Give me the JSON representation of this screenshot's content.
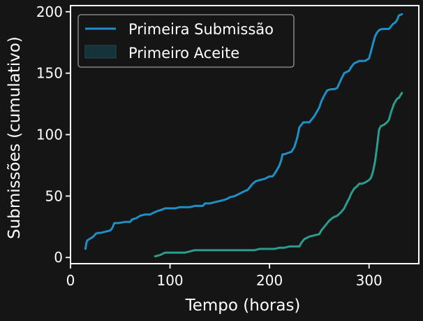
{
  "chart_data": {
    "type": "line",
    "title": "",
    "xlabel": "Tempo (horas)",
    "ylabel": "Submissões (cumulativo)",
    "xlim": [
      0,
      350
    ],
    "ylim": [
      -5,
      205
    ],
    "xticks": [
      0,
      100,
      200,
      300
    ],
    "yticks": [
      0,
      50,
      100,
      150,
      200
    ],
    "grid": false,
    "legend_position": "top-left",
    "background": "#151515",
    "series": [
      {
        "name": "Primeira Submissão",
        "color": "#1f8fc7",
        "x": [
          15,
          16,
          17,
          19,
          21,
          23,
          25,
          27,
          30,
          35,
          40,
          42,
          44,
          48,
          55,
          60,
          62,
          66,
          70,
          75,
          80,
          85,
          88,
          92,
          95,
          100,
          105,
          110,
          115,
          120,
          125,
          130,
          133,
          135,
          140,
          145,
          150,
          155,
          158,
          160,
          165,
          170,
          175,
          178,
          180,
          183,
          186,
          190,
          195,
          200,
          203,
          205,
          208,
          210,
          212,
          213,
          215,
          218,
          222,
          225,
          228,
          230,
          232,
          234,
          235,
          237,
          240,
          245,
          250,
          252,
          255,
          258,
          262,
          265,
          268,
          272,
          275,
          280,
          282,
          285,
          288,
          290,
          293,
          296,
          300,
          302,
          304,
          306,
          308,
          310,
          313,
          316,
          320,
          322,
          324,
          326,
          328,
          330,
          333
        ],
        "y": [
          7,
          12,
          14,
          15,
          16,
          17,
          19,
          20,
          20,
          21,
          22,
          24,
          28,
          28,
          29,
          29,
          31,
          32,
          34,
          35,
          35,
          37,
          38,
          39,
          40,
          40,
          40,
          41,
          41,
          41,
          42,
          42,
          42,
          44,
          44,
          45,
          46,
          47,
          48,
          49,
          50,
          52,
          54,
          55,
          57,
          60,
          62,
          63,
          64,
          66,
          66,
          68,
          72,
          75,
          80,
          84,
          84,
          85,
          86,
          90,
          98,
          106,
          108,
          110,
          110,
          110,
          110,
          115,
          122,
          127,
          132,
          136,
          137,
          137,
          138,
          145,
          150,
          152,
          155,
          158,
          159,
          160,
          160,
          160,
          162,
          168,
          174,
          180,
          183,
          185,
          186,
          186,
          186,
          188,
          190,
          191,
          193,
          197,
          198
        ]
      },
      {
        "name": "Primeiro Aceite",
        "color": "#2a9d8f",
        "x": [
          85,
          90,
          95,
          100,
          105,
          110,
          115,
          120,
          125,
          130,
          140,
          150,
          160,
          170,
          180,
          185,
          190,
          195,
          200,
          205,
          210,
          215,
          220,
          225,
          230,
          232,
          235,
          240,
          245,
          250,
          252,
          255,
          258,
          260,
          263,
          265,
          268,
          272,
          275,
          278,
          280,
          282,
          285,
          288,
          290,
          293,
          296,
          300,
          302,
          304,
          306,
          308,
          310,
          312,
          315,
          318,
          320,
          322,
          325,
          328,
          330,
          333
        ],
        "y": [
          1,
          2,
          4,
          4,
          4,
          4,
          4,
          5,
          6,
          6,
          6,
          6,
          6,
          6,
          6,
          6,
          7,
          7,
          7,
          7,
          8,
          8,
          9,
          9,
          9,
          12,
          15,
          17,
          18,
          19,
          22,
          25,
          28,
          30,
          32,
          33,
          34,
          37,
          40,
          45,
          48,
          52,
          56,
          58,
          60,
          60,
          61,
          63,
          65,
          70,
          78,
          90,
          104,
          107,
          108,
          110,
          112,
          118,
          125,
          129,
          130,
          134
        ]
      }
    ]
  }
}
